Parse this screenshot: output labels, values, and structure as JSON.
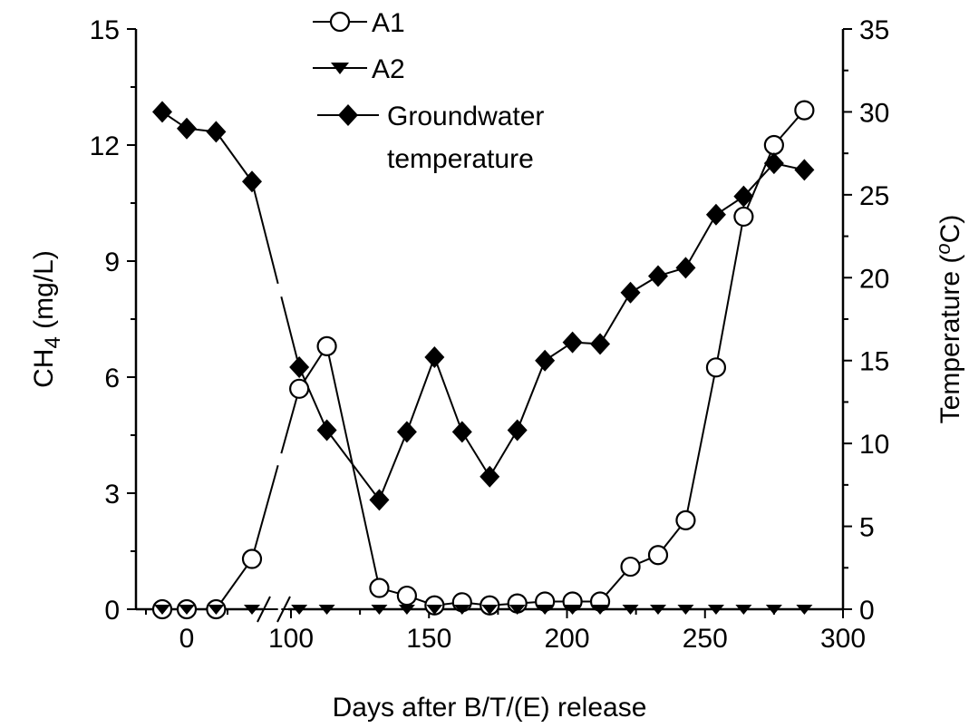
{
  "chart_data": {
    "type": "line",
    "xlabel": "Days after B/T/(E) release",
    "ylabel_left": "CH",
    "ylabel_left_sub": "4",
    "ylabel_left_unit": " (mg/L)",
    "ylabel_right": "Temperature (",
    "ylabel_right_deg": "o",
    "ylabel_right_unit": "C)",
    "x_break": true,
    "x_ticks": [
      "0",
      "100",
      "150",
      "200",
      "250",
      "300"
    ],
    "y_left_ticks": [
      "0",
      "3",
      "6",
      "9",
      "12",
      "15"
    ],
    "y_right_ticks": [
      "0",
      "5",
      "10",
      "15",
      "20",
      "25",
      "30",
      "35"
    ],
    "ylim_left": [
      0,
      15
    ],
    "ylim_right": [
      0,
      35
    ],
    "grid": false,
    "legend_placement": "top-center",
    "series": [
      {
        "name": "A1",
        "axis": "left",
        "marker": "open-circle",
        "points": [
          {
            "x": -15,
            "y": 0.0
          },
          {
            "x": 0,
            "y": 0.0
          },
          {
            "x": 18,
            "y": 0.0
          },
          {
            "x": 40,
            "y": 1.3
          },
          {
            "x": 103,
            "y": 5.7
          },
          {
            "x": 113,
            "y": 6.8
          },
          {
            "x": 132,
            "y": 0.55
          },
          {
            "x": 142,
            "y": 0.35
          },
          {
            "x": 152,
            "y": 0.1
          },
          {
            "x": 162,
            "y": 0.18
          },
          {
            "x": 172,
            "y": 0.1
          },
          {
            "x": 182,
            "y": 0.15
          },
          {
            "x": 192,
            "y": 0.2
          },
          {
            "x": 202,
            "y": 0.2
          },
          {
            "x": 212,
            "y": 0.2
          },
          {
            "x": 223,
            "y": 1.1
          },
          {
            "x": 233,
            "y": 1.4
          },
          {
            "x": 243,
            "y": 2.3
          },
          {
            "x": 254,
            "y": 6.25
          },
          {
            "x": 264,
            "y": 10.15
          },
          {
            "x": 275,
            "y": 12.0
          },
          {
            "x": 286,
            "y": 12.9
          }
        ]
      },
      {
        "name": "A2",
        "axis": "left",
        "marker": "filled-triangle-down",
        "points": [
          {
            "x": -15,
            "y": 0
          },
          {
            "x": 0,
            "y": 0
          },
          {
            "x": 18,
            "y": 0
          },
          {
            "x": 40,
            "y": 0
          },
          {
            "x": 103,
            "y": 0
          },
          {
            "x": 113,
            "y": 0
          },
          {
            "x": 132,
            "y": 0
          },
          {
            "x": 142,
            "y": 0
          },
          {
            "x": 152,
            "y": 0
          },
          {
            "x": 162,
            "y": 0
          },
          {
            "x": 172,
            "y": 0
          },
          {
            "x": 182,
            "y": 0
          },
          {
            "x": 192,
            "y": 0
          },
          {
            "x": 202,
            "y": 0
          },
          {
            "x": 212,
            "y": 0
          },
          {
            "x": 223,
            "y": 0
          },
          {
            "x": 233,
            "y": 0
          },
          {
            "x": 243,
            "y": 0
          },
          {
            "x": 254,
            "y": 0
          },
          {
            "x": 264,
            "y": 0
          },
          {
            "x": 275,
            "y": 0
          },
          {
            "x": 286,
            "y": 0
          }
        ]
      },
      {
        "name": "Groundwater temperature",
        "name_lines": [
          "Groundwater",
          "temperature"
        ],
        "axis": "right",
        "marker": "filled-diamond",
        "points": [
          {
            "x": -15,
            "y": 30.0
          },
          {
            "x": 0,
            "y": 29.0
          },
          {
            "x": 18,
            "y": 28.8
          },
          {
            "x": 40,
            "y": 25.8
          },
          {
            "x": 103,
            "y": 14.6
          },
          {
            "x": 113,
            "y": 10.8
          },
          {
            "x": 132,
            "y": 6.6
          },
          {
            "x": 142,
            "y": 10.7
          },
          {
            "x": 152,
            "y": 15.2
          },
          {
            "x": 162,
            "y": 10.7
          },
          {
            "x": 172,
            "y": 8.0
          },
          {
            "x": 182,
            "y": 10.8
          },
          {
            "x": 192,
            "y": 15.0
          },
          {
            "x": 202,
            "y": 16.1
          },
          {
            "x": 212,
            "y": 16.0
          },
          {
            "x": 223,
            "y": 19.1
          },
          {
            "x": 233,
            "y": 20.1
          },
          {
            "x": 243,
            "y": 20.6
          },
          {
            "x": 254,
            "y": 23.8
          },
          {
            "x": 264,
            "y": 24.9
          },
          {
            "x": 275,
            "y": 26.9
          },
          {
            "x": 286,
            "y": 26.5
          }
        ]
      }
    ]
  }
}
